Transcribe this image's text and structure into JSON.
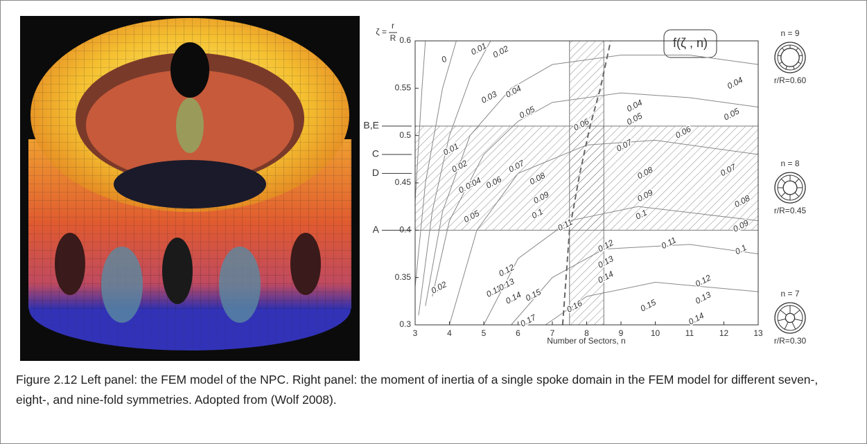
{
  "figure_caption": "Figure 2.12 Left panel: the FEM model of the NPC. Right panel: the moment of inertia of a single spoke domain in the FEM model for different seven-, eight-, and nine-fold symmetries. Adopted from (Wolf 2008).",
  "chart_data": {
    "type": "contour",
    "x_label": "Number of Sectors, n",
    "zeta_label": {
      "lhs": "ζ =",
      "num": "r",
      "den": "R"
    },
    "function_label": "f(ζ , n)",
    "xlim": [
      3,
      13
    ],
    "xticks": [
      3,
      4,
      5,
      6,
      7,
      8,
      9,
      10,
      11,
      12,
      13
    ],
    "ylim": [
      0.3,
      0.6
    ],
    "yticks": [
      0.3,
      0.35,
      0.4,
      0.45,
      0.5,
      0.55,
      0.6
    ],
    "hatch_zeta": [
      0.4,
      0.51
    ],
    "hatch_n": [
      7.5,
      8.5
    ],
    "markers": [
      {
        "label": "B,E",
        "zeta": 0.51
      },
      {
        "label": "C",
        "zeta": 0.48
      },
      {
        "label": "D",
        "zeta": 0.46
      },
      {
        "label": "A",
        "zeta": 0.4
      }
    ],
    "contours": [
      {
        "x": [
          3.0,
          3.2,
          3.3
        ],
        "values": [
          0.43,
          0.55,
          0.6
        ]
      },
      {
        "x": [
          3.0,
          3.3,
          3.8,
          4.2
        ],
        "values": [
          0.34,
          0.45,
          0.55,
          0.6
        ]
      },
      {
        "x": [
          3.1,
          3.5,
          4.0,
          4.6,
          5.2
        ],
        "values": [
          0.31,
          0.42,
          0.5,
          0.56,
          0.6
        ]
      },
      {
        "x": [
          3.3,
          3.8,
          4.6,
          5.8,
          7.0,
          9.0,
          11.0,
          13.0
        ],
        "values": [
          0.32,
          0.42,
          0.5,
          0.55,
          0.575,
          0.585,
          0.585,
          0.575
        ]
      },
      {
        "x": [
          3.5,
          4.0,
          5.0,
          6.0,
          7.0,
          9.0,
          11.0,
          13.0
        ],
        "values": [
          0.33,
          0.41,
          0.48,
          0.515,
          0.535,
          0.545,
          0.54,
          0.53
        ]
      },
      {
        "x": [
          4.0,
          4.8,
          6.0,
          8.0,
          10.0,
          13.0
        ],
        "values": [
          0.3,
          0.4,
          0.46,
          0.49,
          0.495,
          0.48
        ]
      },
      {
        "x": [
          5.0,
          6.0,
          7.5,
          9.5,
          13.0
        ],
        "values": [
          0.3,
          0.37,
          0.41,
          0.425,
          0.41
        ]
      },
      {
        "x": [
          5.8,
          7.0,
          8.5,
          11.0,
          13.0
        ],
        "values": [
          0.3,
          0.35,
          0.38,
          0.385,
          0.375
        ]
      },
      {
        "x": [
          6.8,
          8.0,
          10.0,
          13.0
        ],
        "values": [
          0.3,
          0.33,
          0.345,
          0.335
        ]
      }
    ],
    "dashed": {
      "x": [
        7.3,
        7.5,
        7.8,
        8.1,
        8.4,
        8.7
      ],
      "values": [
        0.3,
        0.4,
        0.46,
        0.51,
        0.55,
        0.6
      ]
    },
    "contour_labels": [
      {
        "text": "0",
        "n": 3.85,
        "zeta": 0.58
      },
      {
        "text": "0.01",
        "n": 4.86,
        "zeta": 0.591
      },
      {
        "text": "0.02",
        "n": 5.5,
        "zeta": 0.588
      },
      {
        "text": "0.03",
        "n": 5.16,
        "zeta": 0.54
      },
      {
        "text": "0.04",
        "n": 5.87,
        "zeta": 0.546
      },
      {
        "text": "0.04",
        "n": 9.4,
        "zeta": 0.531
      },
      {
        "text": "0.04",
        "n": 12.33,
        "zeta": 0.555
      },
      {
        "text": "0.05",
        "n": 6.27,
        "zeta": 0.524
      },
      {
        "text": "0.05",
        "n": 9.4,
        "zeta": 0.517
      },
      {
        "text": "0.05",
        "n": 12.23,
        "zeta": 0.522
      },
      {
        "text": "0.06",
        "n": 7.85,
        "zeta": 0.511
      },
      {
        "text": "0.06",
        "n": 10.82,
        "zeta": 0.503
      },
      {
        "text": "0.07",
        "n": 9.1,
        "zeta": 0.489
      },
      {
        "text": "0.07",
        "n": 12.13,
        "zeta": 0.463
      },
      {
        "text": "0.08",
        "n": 6.57,
        "zeta": 0.454
      },
      {
        "text": "0.08",
        "n": 9.71,
        "zeta": 0.46
      },
      {
        "text": "0.08",
        "n": 12.54,
        "zeta": 0.43
      },
      {
        "text": "0.09",
        "n": 6.68,
        "zeta": 0.434
      },
      {
        "text": "0.09",
        "n": 9.71,
        "zeta": 0.436
      },
      {
        "text": "0.09",
        "n": 12.5,
        "zeta": 0.404
      },
      {
        "text": "0.1",
        "n": 6.57,
        "zeta": 0.417
      },
      {
        "text": "0.1",
        "n": 9.6,
        "zeta": 0.416
      },
      {
        "text": "0.1",
        "n": 12.5,
        "zeta": 0.379
      },
      {
        "text": "0.11",
        "n": 7.38,
        "zeta": 0.405
      },
      {
        "text": "0.11",
        "n": 10.4,
        "zeta": 0.386
      },
      {
        "text": "0.12",
        "n": 8.56,
        "zeta": 0.383
      },
      {
        "text": "0.12",
        "n": 11.4,
        "zeta": 0.346
      },
      {
        "text": "0.13",
        "n": 8.56,
        "zeta": 0.366
      },
      {
        "text": "0.13",
        "n": 11.4,
        "zeta": 0.328
      },
      {
        "text": "0.14",
        "n": 8.56,
        "zeta": 0.35
      },
      {
        "text": "0.14",
        "n": 11.2,
        "zeta": 0.306
      },
      {
        "text": "0.15",
        "n": 6.45,
        "zeta": 0.331
      },
      {
        "text": "0.15",
        "n": 9.8,
        "zeta": 0.32
      },
      {
        "text": "0.16",
        "n": 7.65,
        "zeta": 0.319
      },
      {
        "text": "0.17",
        "n": 6.3,
        "zeta": 0.304
      },
      {
        "text": "0.01",
        "n": 4.05,
        "zeta": 0.485
      },
      {
        "text": "0.02",
        "n": 4.3,
        "zeta": 0.467
      },
      {
        "text": "0.03",
        "n": 4.5,
        "zeta": 0.445
      },
      {
        "text": "0.04",
        "n": 4.7,
        "zeta": 0.449
      },
      {
        "text": "0.05",
        "n": 4.65,
        "zeta": 0.414
      },
      {
        "text": "0.06",
        "n": 5.3,
        "zeta": 0.45
      },
      {
        "text": "0.07",
        "n": 5.96,
        "zeta": 0.467
      },
      {
        "text": "0.02",
        "n": 3.7,
        "zeta": 0.339
      },
      {
        "text": "0.11",
        "n": 5.3,
        "zeta": 0.335
      },
      {
        "text": "0.12",
        "n": 5.67,
        "zeta": 0.357
      },
      {
        "text": "0.13",
        "n": 5.67,
        "zeta": 0.342
      },
      {
        "text": "0.14",
        "n": 5.87,
        "zeta": 0.328
      }
    ],
    "icons": [
      {
        "title": "n = 9",
        "n": 9,
        "ratio": 0.6,
        "label": "r/R=0.60"
      },
      {
        "title": "n = 8",
        "n": 8,
        "ratio": 0.45,
        "label": "r/R=0.45"
      },
      {
        "title": "n = 7",
        "n": 7,
        "ratio": 0.3,
        "label": "r/R=0.30"
      }
    ]
  }
}
